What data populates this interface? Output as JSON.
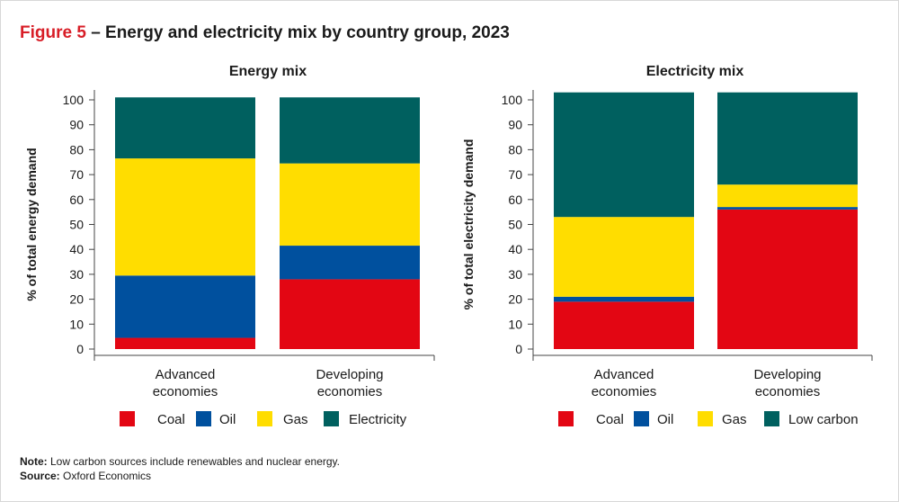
{
  "figure": {
    "label": "Figure 5",
    "title": "– Energy and electricity mix by country group, 2023"
  },
  "chart_data": [
    {
      "type": "bar",
      "stacked": true,
      "title": "Energy mix",
      "xlabel": "",
      "ylabel": "% of total energy demand",
      "ylim": [
        0,
        100
      ],
      "yticks": [
        0,
        10,
        20,
        30,
        40,
        50,
        60,
        70,
        80,
        90,
        100
      ],
      "categories": [
        [
          "Advanced",
          "economies"
        ],
        [
          "Developing",
          "economies"
        ]
      ],
      "series": [
        {
          "name": "Coal",
          "color": "#e30613",
          "values": [
            4.5,
            28
          ]
        },
        {
          "name": "Oil",
          "color": "#00509e",
          "values": [
            25,
            13.5
          ]
        },
        {
          "name": "Gas",
          "color": "#ffdd00",
          "values": [
            47,
            33
          ]
        },
        {
          "name": "Electricity",
          "color": "#00605f",
          "values": [
            24.5,
            26.5
          ]
        }
      ],
      "legend": [
        "Coal",
        "Oil",
        "Gas",
        "Electricity"
      ]
    },
    {
      "type": "bar",
      "stacked": true,
      "title": "Electricity mix",
      "xlabel": "",
      "ylabel": "% of total electricity demand",
      "ylim": [
        0,
        100
      ],
      "yticks": [
        0,
        10,
        20,
        30,
        40,
        50,
        60,
        70,
        80,
        90,
        100
      ],
      "categories": [
        [
          "Advanced",
          "economies"
        ],
        [
          "Developing",
          "economies"
        ]
      ],
      "series": [
        {
          "name": "Coal",
          "color": "#e30613",
          "values": [
            19,
            56
          ]
        },
        {
          "name": "Oil",
          "color": "#00509e",
          "values": [
            2,
            1
          ]
        },
        {
          "name": "Gas",
          "color": "#ffdd00",
          "values": [
            32,
            9
          ]
        },
        {
          "name": "Low carbon",
          "color": "#00605f",
          "values": [
            50,
            37
          ]
        }
      ],
      "legend": [
        "Coal",
        "Oil",
        "Gas",
        "Low carbon"
      ]
    }
  ],
  "notes": {
    "note_label": "Note:",
    "note_text": " Low carbon sources include renewables and nuclear energy.",
    "source_label": "Source:",
    "source_text": " Oxford Economics"
  }
}
